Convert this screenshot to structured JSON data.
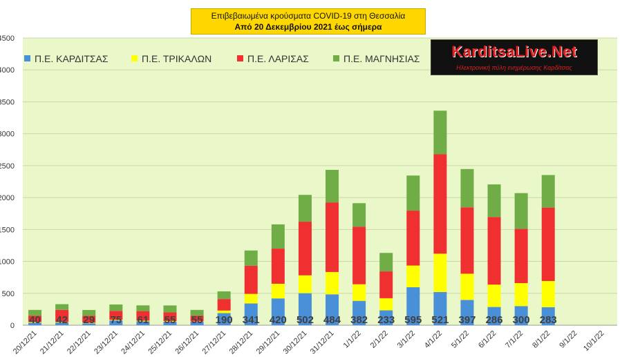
{
  "title": {
    "line1": "Επιβεβαιωμένα κρούσματα COVID-19 στη Θεσσαλία",
    "line2": "Από 20 Δεκεμβρίου 2021 έως σήμερα"
  },
  "watermark": {
    "brand": "KarditsaLive.Net",
    "tagline": "Ηλεκτρονική πύλη ενημέρωσης Καρδίτσας"
  },
  "colors": {
    "plot_bg": "#eaf7c9",
    "grid": "#c8d8a8",
    "title_bg": "#ffd700",
    "series": [
      "#4a90d9",
      "#ffff00",
      "#f03030",
      "#70ad47"
    ]
  },
  "chart_data": {
    "type": "bar",
    "stacked": true,
    "categories": [
      "20/12/21",
      "21/12/21",
      "22/12/21",
      "23/12/21",
      "24/12/21",
      "25/12/21",
      "26/12/21",
      "27/12/21",
      "28/12/21",
      "29/12/21",
      "30/12/21",
      "31/12/21",
      "1/1/22",
      "2/1/22",
      "3/1/22",
      "4/1/22",
      "5/1/22",
      "6/1/22",
      "7/1/22",
      "8/1/22",
      "9/1/22",
      "10/1/22"
    ],
    "series": [
      {
        "name": "Π.Ε. ΚΑΡΔΙΤΣΑΣ",
        "color": "#4a90d9",
        "values": [
          40,
          42,
          29,
          75,
          61,
          55,
          55,
          190,
          341,
          420,
          502,
          484,
          382,
          233,
          595,
          521,
          397,
          286,
          300,
          283,
          null,
          null
        ]
      },
      {
        "name": "Π.Ε. ΤΡΙΚΑΛΩΝ",
        "color": "#ffff00",
        "values": [
          10,
          8,
          10,
          10,
          10,
          10,
          5,
          40,
          150,
          230,
          280,
          350,
          260,
          190,
          340,
          600,
          410,
          350,
          360,
          410,
          null,
          null
        ]
      },
      {
        "name": "Π.Ε. ΛΑΡΙΣΑΣ",
        "color": "#f03030",
        "values": [
          100,
          190,
          110,
          140,
          150,
          135,
          90,
          180,
          440,
          550,
          840,
          1090,
          900,
          420,
          860,
          1560,
          1040,
          1060,
          850,
          1150,
          null,
          null
        ]
      },
      {
        "name": "Π.Ε. ΜΑΓΝΗΣΙΑΣ",
        "color": "#70ad47",
        "values": [
          90,
          90,
          90,
          100,
          90,
          110,
          90,
          120,
          240,
          380,
          420,
          510,
          370,
          290,
          550,
          680,
          600,
          510,
          560,
          510,
          null,
          null
        ]
      }
    ],
    "data_labels": [
      "40",
      "42",
      "29",
      "75",
      "61",
      "55",
      "55",
      "190",
      "341",
      "420",
      "502",
      "484",
      "382",
      "233",
      "595",
      "521",
      "397",
      "286",
      "300",
      "283"
    ],
    "y_ticks": [
      "0",
      "500",
      "1000",
      "1500",
      "2000",
      "2500",
      "3000",
      "3500",
      "4000",
      "4500"
    ],
    "ylim": [
      0,
      4500
    ],
    "grid": true,
    "legend_position": "top-left"
  }
}
